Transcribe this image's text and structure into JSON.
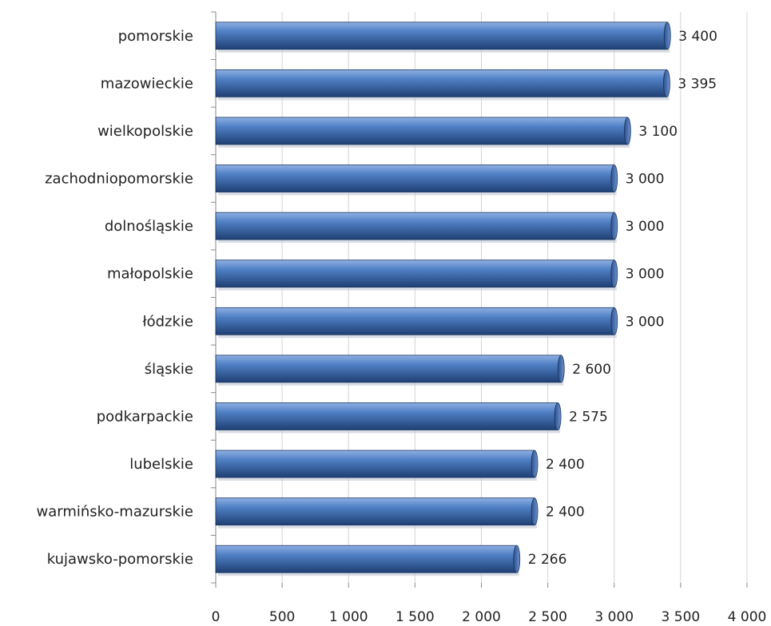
{
  "chart_data": {
    "type": "bar",
    "orientation": "horizontal",
    "categories": [
      "pomorskie",
      "mazowieckie",
      "wielkopolskie",
      "zachodniopomorskie",
      "dolnośląskie",
      "małopolskie",
      "łódzkie",
      "śląskie",
      "podkarpackie",
      "lubelskie",
      "warmińsko-mazurskie",
      "kujawsko-pomorskie"
    ],
    "values": [
      3400,
      3395,
      3100,
      3000,
      3000,
      3000,
      3000,
      2600,
      2575,
      2400,
      2400,
      2266
    ],
    "value_labels": [
      "3 400",
      "3 395",
      "3 100",
      "3 000",
      "3 000",
      "3 000",
      "3 000",
      "2 600",
      "2 575",
      "2 400",
      "2 400",
      "2 266"
    ],
    "xlim": [
      0,
      4000
    ],
    "x_ticks": [
      0,
      500,
      1000,
      1500,
      2000,
      2500,
      3000,
      3500,
      4000
    ],
    "x_tick_labels": [
      "0",
      "500",
      "1 000",
      "1 500",
      "2 000",
      "2 500",
      "3 000",
      "3 500",
      "4 000"
    ],
    "grid": "vertical",
    "legend": "none",
    "colors": {
      "bar_dark": "#1f3f73",
      "bar_mid": "#4a78bd",
      "bar_light": "#8fb0e3",
      "grid": "#d4d4d4",
      "axis": "#888888"
    }
  }
}
